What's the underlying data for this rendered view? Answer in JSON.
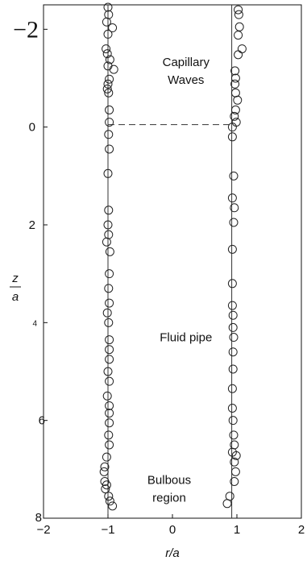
{
  "chart_data": {
    "type": "scatter",
    "xlabel": "r/a",
    "ylabel_num": "z",
    "ylabel_den": "a",
    "xlim": [
      -2,
      2
    ],
    "ylim": [
      -2.5,
      8
    ],
    "y_inverted": true,
    "x_ticks": [
      {
        "value": -2,
        "label": "−2"
      },
      {
        "value": -1,
        "label": "−1"
      },
      {
        "value": 0,
        "label": "0"
      },
      {
        "value": 1,
        "label": "1"
      },
      {
        "value": 2,
        "label": "2"
      }
    ],
    "y_ticks": [
      {
        "value": -2,
        "label": "−2",
        "style": "big"
      },
      {
        "value": 0,
        "label": "0",
        "style": "normal"
      },
      {
        "value": 2,
        "label": "2",
        "style": "normal"
      },
      {
        "value": 4,
        "label": "4",
        "style": "small"
      },
      {
        "value": 6,
        "label": "6",
        "style": "normal"
      },
      {
        "value": 8,
        "label": "8",
        "style": "normal"
      }
    ],
    "reference_lines": [
      {
        "orientation": "vertical",
        "x": -1,
        "y_range": [
          -2.5,
          8
        ]
      },
      {
        "orientation": "vertical",
        "x": 0.92,
        "y_range": [
          -2.5,
          8
        ]
      },
      {
        "orientation": "horizontal",
        "y": -0.05,
        "x_range": [
          -1,
          0.92
        ],
        "dashed": true
      }
    ],
    "annotations": [
      {
        "lines": [
          "Capillary",
          "Waves"
        ],
        "x": 0.21,
        "y": -1.15
      },
      {
        "lines": [
          "Fluid pipe"
        ],
        "x": 0.21,
        "y": 4.3
      },
      {
        "lines": [
          "Bulbous",
          "region"
        ],
        "x": -0.05,
        "y": 7.4
      }
    ],
    "series": [
      {
        "points": [
          {
            "x": -1.0,
            "y": -2.45
          },
          {
            "x": -0.99,
            "y": -2.3
          },
          {
            "x": -1.02,
            "y": -2.15
          },
          {
            "x": -0.93,
            "y": -2.03
          },
          {
            "x": -1.0,
            "y": -1.9
          },
          {
            "x": -1.03,
            "y": -1.6
          },
          {
            "x": -1.01,
            "y": -1.5
          },
          {
            "x": -0.97,
            "y": -1.38
          },
          {
            "x": -1.0,
            "y": -1.25
          },
          {
            "x": -0.91,
            "y": -1.18
          },
          {
            "x": -0.98,
            "y": -0.98
          },
          {
            "x": -1.0,
            "y": -0.88
          },
          {
            "x": -1.01,
            "y": -0.78
          },
          {
            "x": -0.99,
            "y": -0.7
          },
          {
            "x": -0.98,
            "y": -0.35
          },
          {
            "x": -0.98,
            "y": -0.1
          },
          {
            "x": -0.99,
            "y": 0.15
          },
          {
            "x": -0.98,
            "y": 0.45
          },
          {
            "x": -1.0,
            "y": 0.95
          },
          {
            "x": -0.99,
            "y": 1.7
          },
          {
            "x": -1.0,
            "y": 2.0
          },
          {
            "x": -0.99,
            "y": 2.2
          },
          {
            "x": -1.02,
            "y": 2.35
          },
          {
            "x": -0.97,
            "y": 2.55
          },
          {
            "x": -0.98,
            "y": 3.0
          },
          {
            "x": -0.99,
            "y": 3.3
          },
          {
            "x": -0.98,
            "y": 3.6
          },
          {
            "x": -1.01,
            "y": 3.8
          },
          {
            "x": -0.99,
            "y": 4.0
          },
          {
            "x": -0.98,
            "y": 4.35
          },
          {
            "x": -0.98,
            "y": 4.55
          },
          {
            "x": -0.98,
            "y": 4.75
          },
          {
            "x": -1.0,
            "y": 5.0
          },
          {
            "x": -0.98,
            "y": 5.2
          },
          {
            "x": -1.01,
            "y": 5.5
          },
          {
            "x": -0.98,
            "y": 5.7
          },
          {
            "x": -0.98,
            "y": 5.85
          },
          {
            "x": -0.98,
            "y": 6.05
          },
          {
            "x": -0.99,
            "y": 6.3
          },
          {
            "x": -0.98,
            "y": 6.5
          },
          {
            "x": -1.02,
            "y": 6.75
          },
          {
            "x": -1.05,
            "y": 6.95
          },
          {
            "x": -1.06,
            "y": 7.05
          },
          {
            "x": -1.05,
            "y": 7.25
          },
          {
            "x": -1.02,
            "y": 7.32
          },
          {
            "x": -1.04,
            "y": 7.4
          },
          {
            "x": -0.99,
            "y": 7.55
          },
          {
            "x": -0.97,
            "y": 7.65
          },
          {
            "x": -0.93,
            "y": 7.75
          },
          {
            "x": 1.02,
            "y": -2.4
          },
          {
            "x": 1.03,
            "y": -2.3
          },
          {
            "x": 1.04,
            "y": -2.05
          },
          {
            "x": 1.02,
            "y": -1.88
          },
          {
            "x": 1.08,
            "y": -1.6
          },
          {
            "x": 1.02,
            "y": -1.48
          },
          {
            "x": 0.97,
            "y": -1.15
          },
          {
            "x": 0.98,
            "y": -1.0
          },
          {
            "x": 0.97,
            "y": -0.88
          },
          {
            "x": 0.98,
            "y": -0.7
          },
          {
            "x": 1.01,
            "y": -0.55
          },
          {
            "x": 0.98,
            "y": -0.35
          },
          {
            "x": 0.96,
            "y": -0.22
          },
          {
            "x": 0.99,
            "y": -0.1
          },
          {
            "x": 0.93,
            "y": 0.0
          },
          {
            "x": 0.93,
            "y": 0.2
          },
          {
            "x": 0.95,
            "y": 1.0
          },
          {
            "x": 0.93,
            "y": 1.45
          },
          {
            "x": 0.96,
            "y": 1.65
          },
          {
            "x": 0.95,
            "y": 1.95
          },
          {
            "x": 0.93,
            "y": 2.5
          },
          {
            "x": 0.93,
            "y": 3.2
          },
          {
            "x": 0.93,
            "y": 3.65
          },
          {
            "x": 0.94,
            "y": 3.85
          },
          {
            "x": 0.94,
            "y": 4.1
          },
          {
            "x": 0.95,
            "y": 4.3
          },
          {
            "x": 0.94,
            "y": 4.6
          },
          {
            "x": 0.94,
            "y": 4.95
          },
          {
            "x": 0.93,
            "y": 5.35
          },
          {
            "x": 0.93,
            "y": 5.75
          },
          {
            "x": 0.94,
            "y": 6.0
          },
          {
            "x": 0.95,
            "y": 6.3
          },
          {
            "x": 0.96,
            "y": 6.5
          },
          {
            "x": 0.93,
            "y": 6.65
          },
          {
            "x": 0.99,
            "y": 6.72
          },
          {
            "x": 0.96,
            "y": 6.85
          },
          {
            "x": 0.98,
            "y": 7.05
          },
          {
            "x": 0.96,
            "y": 7.25
          },
          {
            "x": 0.89,
            "y": 7.55
          },
          {
            "x": 0.85,
            "y": 7.7
          }
        ]
      }
    ]
  }
}
